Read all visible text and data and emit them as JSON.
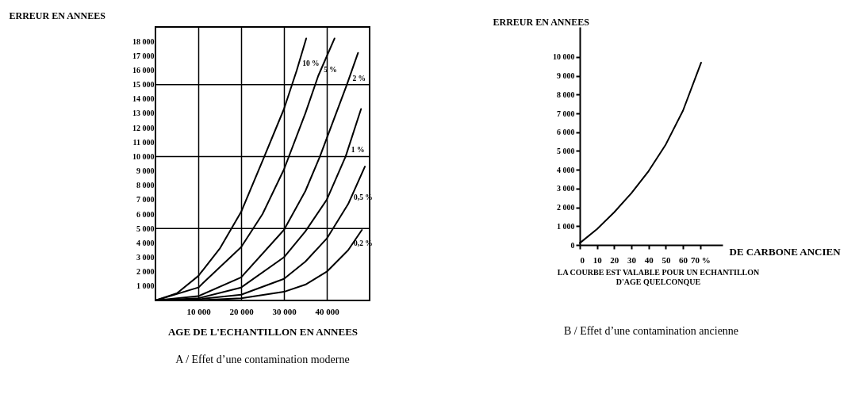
{
  "chart_data": [
    {
      "type": "line",
      "title": "A / Effet d’une contamination moderne",
      "xlabel": "AGE DE L'ECHANTILLON EN ANNEES",
      "ylabel": "ERREUR EN ANNEES",
      "xlim": [
        0,
        50000
      ],
      "ylim": [
        0,
        19000
      ],
      "xticks": [
        {
          "value": 10000,
          "label": "10 000"
        },
        {
          "value": 20000,
          "label": "20 000"
        },
        {
          "value": 30000,
          "label": "30 000"
        },
        {
          "value": 40000,
          "label": "40 000"
        }
      ],
      "yticks": [
        {
          "value": 1000,
          "label": "1 000"
        },
        {
          "value": 2000,
          "label": "2 000"
        },
        {
          "value": 3000,
          "label": "3 000"
        },
        {
          "value": 4000,
          "label": "4 000"
        },
        {
          "value": 5000,
          "label": "5 000"
        },
        {
          "value": 6000,
          "label": "6 000"
        },
        {
          "value": 7000,
          "label": "7 000"
        },
        {
          "value": 8000,
          "label": "8 000"
        },
        {
          "value": 9000,
          "label": "9 000"
        },
        {
          "value": 10000,
          "label": "10 000"
        },
        {
          "value": 11000,
          "label": "11 000"
        },
        {
          "value": 12000,
          "label": "12 000"
        },
        {
          "value": 13000,
          "label": "13 000"
        },
        {
          "value": 14000,
          "label": "14 000"
        },
        {
          "value": 15000,
          "label": "15 000"
        },
        {
          "value": 16000,
          "label": "16 000"
        },
        {
          "value": 17000,
          "label": "17 000"
        },
        {
          "value": 18000,
          "label": "18 000"
        }
      ],
      "grid": "x",
      "legend": false,
      "ref_lines": [
        {
          "axis": "y",
          "value": 5000
        },
        {
          "axis": "y",
          "value": 10000
        },
        {
          "axis": "y",
          "value": 15000
        }
      ],
      "series": [
        {
          "name": "10 %",
          "color": "#000000",
          "x": [
            0,
            5000,
            10000,
            15000,
            20000,
            25000,
            30000,
            33000,
            35200
          ],
          "values": [
            0,
            500,
            1700,
            3600,
            6150,
            9700,
            13300,
            16000,
            18200
          ]
        },
        {
          "name": "5 %",
          "color": "#000000",
          "x": [
            0,
            10000,
            20000,
            25000,
            30000,
            35000,
            38000,
            41800
          ],
          "values": [
            0,
            900,
            3700,
            6000,
            9100,
            13000,
            15600,
            18200
          ]
        },
        {
          "name": "2 %",
          "color": "#000000",
          "x": [
            0,
            10000,
            20000,
            30000,
            35000,
            38400,
            44700,
            47300
          ],
          "values": [
            0,
            300,
            1600,
            4900,
            7600,
            10000,
            15000,
            17200
          ]
        },
        {
          "name": "1 %",
          "color": "#000000",
          "x": [
            0,
            10000,
            20000,
            30000,
            35000,
            40000,
            44400,
            48000
          ],
          "values": [
            0,
            150,
            900,
            3000,
            4800,
            7000,
            10000,
            13300
          ]
        },
        {
          "name": "0,5 %",
          "color": "#000000",
          "x": [
            0,
            10000,
            20000,
            30000,
            35000,
            40000,
            45000,
            48900
          ],
          "values": [
            0,
            80,
            400,
            1500,
            2700,
            4300,
            6700,
            9300
          ]
        },
        {
          "name": "0,2 %",
          "color": "#000000",
          "x": [
            0,
            10000,
            20000,
            30000,
            35000,
            40000,
            45000,
            48200
          ],
          "values": [
            0,
            20,
            150,
            600,
            1100,
            2000,
            3500,
            4900
          ]
        }
      ]
    },
    {
      "type": "line",
      "title": "B / Effet d’une contamination ancienne",
      "xlabel": "DE CARBONE ANCIEN",
      "ylabel": "ERREUR EN ANNEES",
      "annotations": [
        "LA COURBE EST VALABLE POUR UN ECHANTILLON\nD'AGE QUELCONQUE"
      ],
      "xlim": [
        0,
        83
      ],
      "ylim": [
        0,
        11600
      ],
      "xticks": [
        0,
        10,
        20,
        30,
        40,
        50,
        60,
        {
          "value": 70,
          "label": "70 %"
        }
      ],
      "yticks": [
        0,
        {
          "value": 1000,
          "label": "1 000"
        },
        {
          "value": 2000,
          "label": "2 000"
        },
        {
          "value": 3000,
          "label": "3 000"
        },
        {
          "value": 4000,
          "label": "4 000"
        },
        {
          "value": 5000,
          "label": "5 000"
        },
        {
          "value": 6000,
          "label": "6 000"
        },
        {
          "value": 7000,
          "label": "7 000"
        },
        {
          "value": 8000,
          "label": "8 000"
        },
        {
          "value": 9000,
          "label": "9 000"
        },
        {
          "value": 10000,
          "label": "10 000"
        }
      ],
      "grid": false,
      "legend": false,
      "series": [
        {
          "color": "#000000",
          "x": [
            0,
            10,
            20,
            30,
            40,
            50,
            60,
            70.5
          ],
          "values": [
            100,
            840,
            1740,
            2760,
            3930,
            5350,
            7150,
            9700
          ]
        }
      ]
    }
  ]
}
